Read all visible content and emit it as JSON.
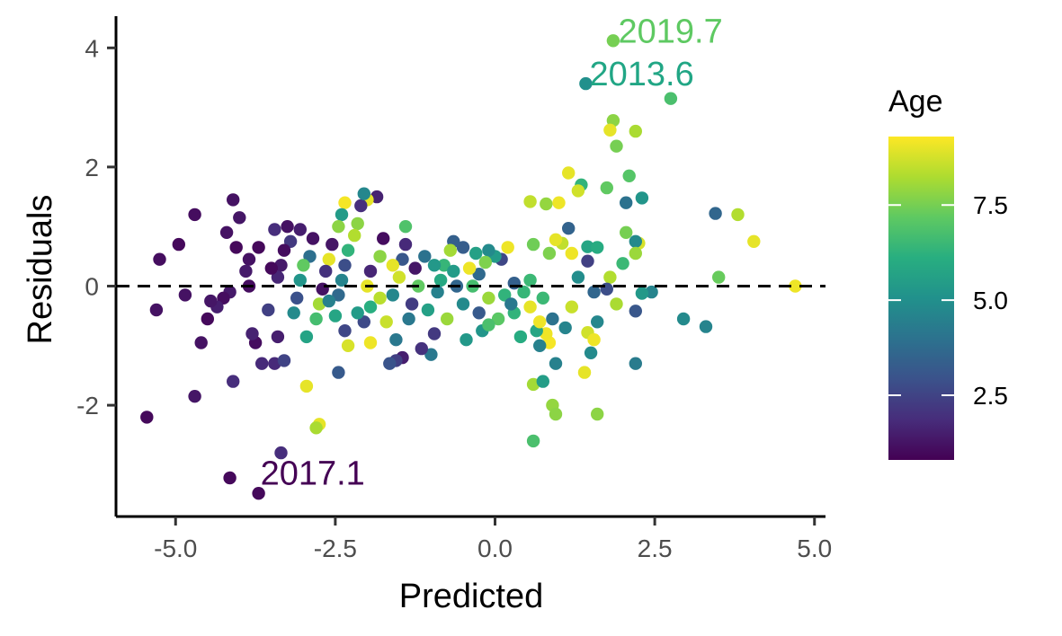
{
  "chart_data": {
    "type": "scatter",
    "title": "",
    "xlabel": "Predicted",
    "ylabel": "Residuals",
    "xlim": [
      -5.9,
      5.3
    ],
    "ylim": [
      -3.85,
      4.45
    ],
    "x_ticks": [
      -5.0,
      -2.5,
      0.0,
      2.5,
      5.0
    ],
    "x_tick_labels": [
      "-5.0",
      "-2.5",
      "0.0",
      "2.5",
      "5.0"
    ],
    "y_ticks": [
      -2,
      0,
      2,
      4
    ],
    "y_tick_labels": [
      "-2",
      "0",
      "2",
      "4"
    ],
    "reference_line": {
      "y": 0,
      "style": "dashed",
      "color": "#000000"
    },
    "grid": false,
    "color_scale": {
      "name": "Age",
      "palette": "viridis",
      "range": [
        0.8,
        9.3
      ],
      "ticks": [
        2.5,
        5.0,
        7.5
      ],
      "tick_labels": [
        "2.5",
        "5.0",
        "7.5"
      ],
      "legend_position": "right"
    },
    "annotations": [
      {
        "text": "2019.7",
        "x": 1.9,
        "y": 4.12,
        "age": 7.5,
        "color": "#5ec962"
      },
      {
        "text": "2013.6",
        "x": 1.45,
        "y": 3.4,
        "age": 5.0,
        "color": "#21a685"
      },
      {
        "text": "2017.1",
        "x": -3.7,
        "y": -3.3,
        "age": 1.0,
        "color": "#440154"
      }
    ],
    "points": [
      {
        "x": 1.85,
        "y": 4.12,
        "age": 7.5
      },
      {
        "x": 1.42,
        "y": 3.4,
        "age": 5.0
      },
      {
        "x": 2.75,
        "y": 3.15,
        "age": 6.8
      },
      {
        "x": 1.85,
        "y": 2.78,
        "age": 7.8
      },
      {
        "x": 1.8,
        "y": 2.62,
        "age": 9.0
      },
      {
        "x": 2.2,
        "y": 2.6,
        "age": 8.2
      },
      {
        "x": 1.9,
        "y": 2.35,
        "age": 7.5
      },
      {
        "x": 1.15,
        "y": 1.9,
        "age": 9.0
      },
      {
        "x": 2.1,
        "y": 1.85,
        "age": 7.0
      },
      {
        "x": 1.35,
        "y": 1.7,
        "age": 6.3
      },
      {
        "x": 1.3,
        "y": 1.6,
        "age": 8.7
      },
      {
        "x": 1.75,
        "y": 1.65,
        "age": 7.2
      },
      {
        "x": 2.3,
        "y": 1.48,
        "age": 5.2
      },
      {
        "x": 2.05,
        "y": 1.4,
        "age": 4.0
      },
      {
        "x": 0.55,
        "y": 1.42,
        "age": 8.5
      },
      {
        "x": 0.8,
        "y": 1.38,
        "age": 7.9
      },
      {
        "x": 1.0,
        "y": 1.4,
        "age": 9.1
      },
      {
        "x": 3.45,
        "y": 1.22,
        "age": 3.6
      },
      {
        "x": 3.8,
        "y": 1.2,
        "age": 8.3
      },
      {
        "x": 1.15,
        "y": 0.97,
        "age": 3.5
      },
      {
        "x": 2.05,
        "y": 0.9,
        "age": 7.5
      },
      {
        "x": 4.05,
        "y": 0.75,
        "age": 9.0
      },
      {
        "x": 2.25,
        "y": 0.72,
        "age": 8.8
      },
      {
        "x": 2.2,
        "y": 0.75,
        "age": 4.8
      },
      {
        "x": 1.05,
        "y": 0.72,
        "age": 8.5
      },
      {
        "x": 0.95,
        "y": 0.78,
        "age": 9.0
      },
      {
        "x": 1.45,
        "y": 0.66,
        "age": 5.8
      },
      {
        "x": 1.2,
        "y": 0.55,
        "age": 9.1
      },
      {
        "x": 2.2,
        "y": 0.55,
        "age": 8.0
      },
      {
        "x": 2.0,
        "y": 0.38,
        "age": 6.5
      },
      {
        "x": 1.45,
        "y": 0.42,
        "age": 2.4
      },
      {
        "x": 3.5,
        "y": 0.15,
        "age": 7.3
      },
      {
        "x": 4.7,
        "y": 0.0,
        "age": 9.1
      },
      {
        "x": 1.8,
        "y": 0.15,
        "age": 8.3
      },
      {
        "x": 1.75,
        "y": -0.05,
        "age": 2.8
      },
      {
        "x": 2.45,
        "y": -0.1,
        "age": 4.6
      },
      {
        "x": 2.3,
        "y": -0.12,
        "age": 5.3
      },
      {
        "x": 1.55,
        "y": -0.1,
        "age": 3.6
      },
      {
        "x": 1.9,
        "y": -0.3,
        "age": 8.2
      },
      {
        "x": 2.2,
        "y": -0.42,
        "age": 3.1
      },
      {
        "x": 2.95,
        "y": -0.55,
        "age": 4.8
      },
      {
        "x": 3.3,
        "y": -0.68,
        "age": 4.6
      },
      {
        "x": 1.6,
        "y": -0.6,
        "age": 4.7
      },
      {
        "x": 1.45,
        "y": -0.78,
        "age": 8.7
      },
      {
        "x": 1.55,
        "y": -0.9,
        "age": 9.1
      },
      {
        "x": 1.5,
        "y": -1.12,
        "age": 4.8
      },
      {
        "x": 1.4,
        "y": -1.45,
        "age": 9.0
      },
      {
        "x": 2.2,
        "y": -1.3,
        "age": 4.3
      },
      {
        "x": 0.6,
        "y": -1.65,
        "age": 8.1
      },
      {
        "x": 0.75,
        "y": -1.6,
        "age": 5.5
      },
      {
        "x": 0.9,
        "y": -2.0,
        "age": 7.9
      },
      {
        "x": 0.95,
        "y": -2.15,
        "age": 7.8
      },
      {
        "x": 1.6,
        "y": -2.15,
        "age": 7.8
      },
      {
        "x": 0.6,
        "y": -2.6,
        "age": 6.8
      },
      {
        "x": 0.85,
        "y": -0.95,
        "age": 9.2
      },
      {
        "x": 0.8,
        "y": -0.8,
        "age": 9.1
      },
      {
        "x": 0.65,
        "y": -0.75,
        "age": 5.8
      },
      {
        "x": 0.4,
        "y": -0.85,
        "age": 6.0
      },
      {
        "x": 0.7,
        "y": -1.0,
        "age": 4.5
      },
      {
        "x": 0.95,
        "y": -1.3,
        "age": 4.5
      },
      {
        "x": 0.7,
        "y": -0.6,
        "age": 9.1
      },
      {
        "x": 0.9,
        "y": -0.55,
        "age": 4.0
      },
      {
        "x": 1.2,
        "y": -0.35,
        "age": 8.6
      },
      {
        "x": 0.3,
        "y": -0.45,
        "age": 6.3
      },
      {
        "x": 0.55,
        "y": -0.35,
        "age": 9.0
      },
      {
        "x": 0.6,
        "y": 0.7,
        "age": 7.4
      },
      {
        "x": 0.85,
        "y": 0.55,
        "age": 7.6
      },
      {
        "x": 0.55,
        "y": 0.1,
        "age": 6.5
      },
      {
        "x": 0.2,
        "y": 0.65,
        "age": 9.1
      },
      {
        "x": 0.1,
        "y": 0.45,
        "age": 2.6
      },
      {
        "x": 0.0,
        "y": 0.5,
        "age": 5.4
      },
      {
        "x": -0.1,
        "y": 0.6,
        "age": 4.8
      },
      {
        "x": -0.15,
        "y": 0.4,
        "age": 7.6
      },
      {
        "x": -0.25,
        "y": 0.2,
        "age": 3.7
      },
      {
        "x": -0.35,
        "y": 0.0,
        "age": 6.7
      },
      {
        "x": -0.1,
        "y": -0.2,
        "age": 8.0
      },
      {
        "x": 0.05,
        "y": -0.55,
        "age": 7.1
      },
      {
        "x": -0.2,
        "y": -0.75,
        "age": 5.2
      },
      {
        "x": -0.45,
        "y": -0.9,
        "age": 5.3
      },
      {
        "x": -0.5,
        "y": -0.3,
        "age": 4.8
      },
      {
        "x": -0.3,
        "y": 0.55,
        "age": 5.6
      },
      {
        "x": -0.4,
        "y": 0.3,
        "age": 9.1
      },
      {
        "x": -0.5,
        "y": 0.65,
        "age": 3.3
      },
      {
        "x": -0.65,
        "y": 0.75,
        "age": 3.4
      },
      {
        "x": -0.7,
        "y": 0.6,
        "age": 8.1
      },
      {
        "x": -0.8,
        "y": 0.35,
        "age": 6.4
      },
      {
        "x": -0.85,
        "y": 0.1,
        "age": 5.9
      },
      {
        "x": -0.9,
        "y": -0.1,
        "age": 4.5
      },
      {
        "x": -0.75,
        "y": -0.55,
        "age": 8.0
      },
      {
        "x": -0.95,
        "y": -0.8,
        "age": 2.2
      },
      {
        "x": -1.0,
        "y": -1.15,
        "age": 4.2
      },
      {
        "x": -1.15,
        "y": -1.05,
        "age": 2.0
      },
      {
        "x": -1.1,
        "y": 0.5,
        "age": 4.0
      },
      {
        "x": -1.25,
        "y": 0.3,
        "age": 1.3
      },
      {
        "x": -1.2,
        "y": 0.0,
        "age": 7.2
      },
      {
        "x": -1.3,
        "y": -0.3,
        "age": 2.3
      },
      {
        "x": -1.4,
        "y": 0.7,
        "age": 1.8
      },
      {
        "x": -1.45,
        "y": 0.45,
        "age": 3.1
      },
      {
        "x": -1.5,
        "y": 0.15,
        "age": 8.7
      },
      {
        "x": -1.6,
        "y": -0.15,
        "age": 4.7
      },
      {
        "x": -1.7,
        "y": -0.6,
        "age": 8.6
      },
      {
        "x": -1.55,
        "y": -0.9,
        "age": 4.2
      },
      {
        "x": -1.45,
        "y": -1.2,
        "age": 1.5
      },
      {
        "x": -1.55,
        "y": -1.25,
        "age": 2.4
      },
      {
        "x": -1.65,
        "y": -1.3,
        "age": 3.0
      },
      {
        "x": -1.4,
        "y": 1.0,
        "age": 6.9
      },
      {
        "x": -1.75,
        "y": 0.8,
        "age": 1.1
      },
      {
        "x": -1.8,
        "y": 0.5,
        "age": 7.8
      },
      {
        "x": -1.95,
        "y": 0.25,
        "age": 1.7
      },
      {
        "x": -2.0,
        "y": 0.0,
        "age": 9.0
      },
      {
        "x": -1.95,
        "y": -0.35,
        "age": 6.1
      },
      {
        "x": -2.05,
        "y": -0.6,
        "age": 2.7
      },
      {
        "x": -1.95,
        "y": -0.95,
        "age": 9.1
      },
      {
        "x": -1.85,
        "y": 1.5,
        "age": 1.6
      },
      {
        "x": -2.0,
        "y": 1.45,
        "age": 9.0
      },
      {
        "x": -2.1,
        "y": 1.35,
        "age": 1.9
      },
      {
        "x": -2.05,
        "y": 1.55,
        "age": 4.7
      },
      {
        "x": -2.15,
        "y": 1.05,
        "age": 7.8
      },
      {
        "x": -2.2,
        "y": 0.85,
        "age": 8.3
      },
      {
        "x": -2.3,
        "y": 0.6,
        "age": 6.3
      },
      {
        "x": -2.35,
        "y": 0.35,
        "age": 2.8
      },
      {
        "x": -2.4,
        "y": 0.1,
        "age": 4.6
      },
      {
        "x": -2.45,
        "y": -0.15,
        "age": 3.7
      },
      {
        "x": -2.5,
        "y": -0.5,
        "age": 5.8
      },
      {
        "x": -2.35,
        "y": -0.75,
        "age": 2.6
      },
      {
        "x": -2.45,
        "y": -1.45,
        "age": 3.2
      },
      {
        "x": -2.3,
        "y": -1.0,
        "age": 8.8
      },
      {
        "x": -2.35,
        "y": 1.4,
        "age": 9.2
      },
      {
        "x": -2.4,
        "y": 1.2,
        "age": 5.4
      },
      {
        "x": -2.45,
        "y": 1.0,
        "age": 7.8
      },
      {
        "x": -2.55,
        "y": 0.7,
        "age": 1.3
      },
      {
        "x": -2.6,
        "y": 0.45,
        "age": 9.0
      },
      {
        "x": -2.65,
        "y": 0.25,
        "age": 2.0
      },
      {
        "x": -2.7,
        "y": -0.05,
        "age": 1.2
      },
      {
        "x": -2.75,
        "y": -0.3,
        "age": 8.1
      },
      {
        "x": -2.8,
        "y": -0.55,
        "age": 6.7
      },
      {
        "x": -2.95,
        "y": -0.85,
        "age": 5.7
      },
      {
        "x": -2.85,
        "y": 0.8,
        "age": 1.2
      },
      {
        "x": -2.9,
        "y": 0.5,
        "age": 3.9
      },
      {
        "x": -3.0,
        "y": 0.35,
        "age": 7.2
      },
      {
        "x": -3.05,
        "y": 0.1,
        "age": 5.2
      },
      {
        "x": -3.1,
        "y": -0.2,
        "age": 2.9
      },
      {
        "x": -3.15,
        "y": -0.45,
        "age": 4.8
      },
      {
        "x": -3.05,
        "y": 0.95,
        "age": 1.5
      },
      {
        "x": -3.2,
        "y": 0.75,
        "age": 2.2
      },
      {
        "x": -3.3,
        "y": 0.6,
        "age": 1.1
      },
      {
        "x": -3.35,
        "y": 0.35,
        "age": 1.4
      },
      {
        "x": -3.4,
        "y": 0.15,
        "age": 1.7
      },
      {
        "x": -3.25,
        "y": 1.0,
        "age": 1.2
      },
      {
        "x": -3.45,
        "y": 0.95,
        "age": 1.9
      },
      {
        "x": -3.5,
        "y": 0.3,
        "age": 1.0
      },
      {
        "x": -3.55,
        "y": -0.4,
        "age": 2.4
      },
      {
        "x": -3.4,
        "y": -0.85,
        "age": 1.5
      },
      {
        "x": -3.45,
        "y": -1.3,
        "age": 1.8
      },
      {
        "x": -3.3,
        "y": -1.25,
        "age": 2.5
      },
      {
        "x": -3.75,
        "y": -0.95,
        "age": 1.1
      },
      {
        "x": -3.8,
        "y": -0.8,
        "age": 1.6
      },
      {
        "x": -3.65,
        "y": -1.3,
        "age": 1.8
      },
      {
        "x": -3.7,
        "y": 0.65,
        "age": 1.0
      },
      {
        "x": -3.85,
        "y": 0.45,
        "age": 1.2
      },
      {
        "x": -3.9,
        "y": 0.25,
        "age": 1.4
      },
      {
        "x": -3.85,
        "y": 0.0,
        "age": 1.1
      },
      {
        "x": -4.0,
        "y": 1.15,
        "age": 1.3
      },
      {
        "x": -4.1,
        "y": 1.45,
        "age": 1.2
      },
      {
        "x": -4.05,
        "y": 0.65,
        "age": 1.0
      },
      {
        "x": -4.2,
        "y": 0.9,
        "age": 1.2
      },
      {
        "x": -4.15,
        "y": -0.1,
        "age": 1.4
      },
      {
        "x": -4.1,
        "y": -1.6,
        "age": 1.9
      },
      {
        "x": -4.25,
        "y": -0.2,
        "age": 1.1
      },
      {
        "x": -4.35,
        "y": -0.35,
        "age": 1.5
      },
      {
        "x": -4.45,
        "y": -0.25,
        "age": 1.3
      },
      {
        "x": -4.5,
        "y": -0.55,
        "age": 1.0
      },
      {
        "x": -4.6,
        "y": -0.95,
        "age": 1.2
      },
      {
        "x": -4.7,
        "y": 1.2,
        "age": 1.1
      },
      {
        "x": -4.7,
        "y": -1.85,
        "age": 1.3
      },
      {
        "x": -4.95,
        "y": 0.7,
        "age": 1.0
      },
      {
        "x": -4.85,
        "y": -0.15,
        "age": 1.2
      },
      {
        "x": -5.25,
        "y": 0.45,
        "age": 1.1
      },
      {
        "x": -5.3,
        "y": -0.4,
        "age": 1.2
      },
      {
        "x": -5.45,
        "y": -2.2,
        "age": 1.0
      },
      {
        "x": -3.35,
        "y": -2.8,
        "age": 1.9
      },
      {
        "x": -4.15,
        "y": -3.22,
        "age": 1.0
      },
      {
        "x": -3.7,
        "y": -3.48,
        "age": 1.0
      },
      {
        "x": -2.95,
        "y": -1.68,
        "age": 9.0
      },
      {
        "x": -2.75,
        "y": -2.32,
        "age": 9.0
      },
      {
        "x": -2.8,
        "y": -2.38,
        "age": 8.2
      },
      {
        "x": -0.1,
        "y": -0.65,
        "age": 6.8
      },
      {
        "x": 0.15,
        "y": -0.15,
        "age": 6.3
      },
      {
        "x": 0.3,
        "y": 0.05,
        "age": 3.4
      },
      {
        "x": 0.45,
        "y": -0.1,
        "age": 6.4
      },
      {
        "x": 0.25,
        "y": -0.3,
        "age": 4.2
      },
      {
        "x": -0.6,
        "y": 0.0,
        "age": 3.6
      },
      {
        "x": -0.65,
        "y": 0.25,
        "age": 5.4
      },
      {
        "x": -1.05,
        "y": -0.4,
        "age": 5.6
      },
      {
        "x": -1.35,
        "y": -0.55,
        "age": 4.2
      },
      {
        "x": -1.8,
        "y": -0.2,
        "age": 8.4
      },
      {
        "x": -2.15,
        "y": -0.45,
        "age": 5.4
      },
      {
        "x": -2.6,
        "y": -0.25,
        "age": 4.5
      },
      {
        "x": -1.6,
        "y": 0.35,
        "age": 9.0
      },
      {
        "x": -0.95,
        "y": 0.35,
        "age": 5.3
      },
      {
        "x": -0.25,
        "y": -0.45,
        "age": 3.2
      },
      {
        "x": 0.75,
        "y": -0.2,
        "age": 6.5
      },
      {
        "x": 1.1,
        "y": -0.7,
        "age": 4.6
      },
      {
        "x": 1.3,
        "y": 0.15,
        "age": 4.9
      },
      {
        "x": 1.6,
        "y": 0.65,
        "age": 6.0
      }
    ]
  }
}
